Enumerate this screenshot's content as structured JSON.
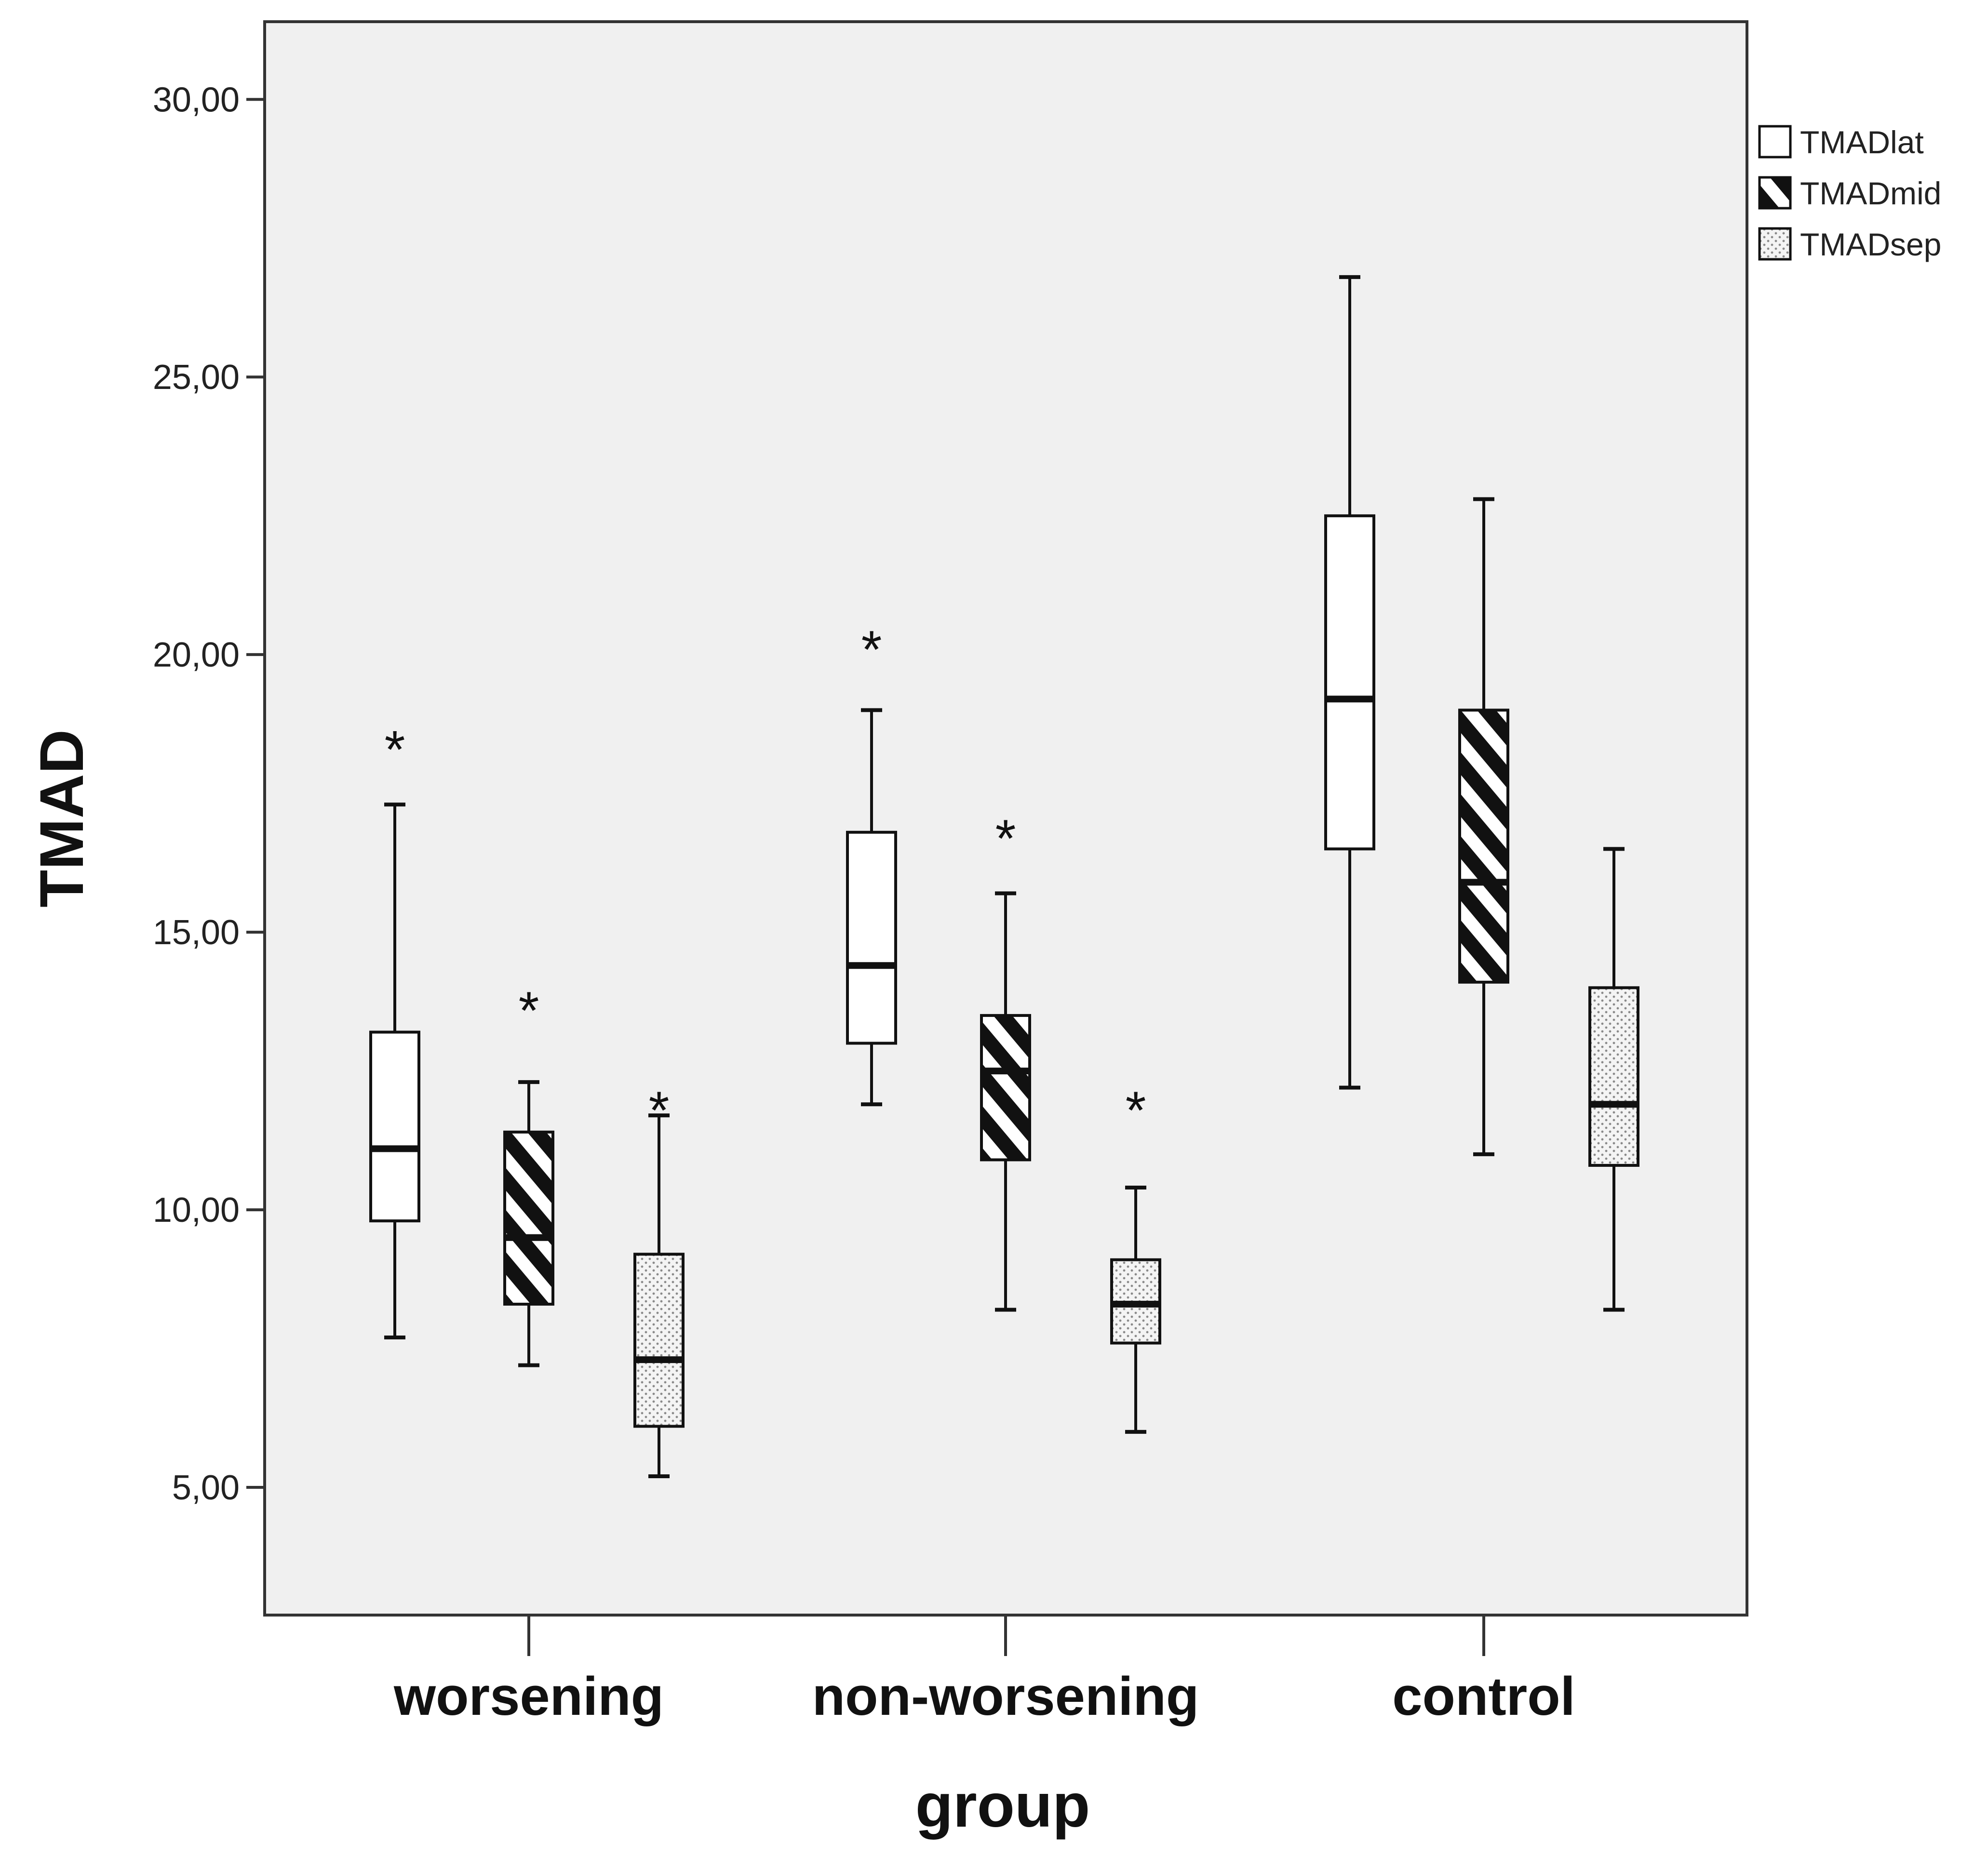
{
  "chart_data": {
    "type": "boxplot",
    "title": "",
    "xlabel": "group",
    "ylabel": "TMAD",
    "ylim": [
      2.7,
      31.4
    ],
    "yticks": [
      "5,00",
      "10,00",
      "15,00",
      "20,00",
      "25,00",
      "30,00"
    ],
    "categories": [
      "worsening",
      "non-worsening",
      "control"
    ],
    "legend_position": "right",
    "grid": false,
    "series": [
      {
        "name": "TMADlat",
        "fill": "#ffffff",
        "pattern": "none",
        "boxes": [
          {
            "min": 7.7,
            "q1": 9.8,
            "median": 11.1,
            "q3": 13.2,
            "max": 17.3,
            "outliers": [
              18.5
            ]
          },
          {
            "min": 11.9,
            "q1": 13.0,
            "median": 14.4,
            "q3": 16.8,
            "max": 19.0,
            "outliers": [
              20.3
            ]
          },
          {
            "min": 12.2,
            "q1": 16.5,
            "median": 19.2,
            "q3": 22.5,
            "max": 26.8,
            "outliers": []
          }
        ]
      },
      {
        "name": "TMADmid",
        "fill": "#111111",
        "pattern": "diagonal-stripes",
        "boxes": [
          {
            "min": 7.2,
            "q1": 8.3,
            "median": 9.5,
            "q3": 11.4,
            "max": 12.3,
            "outliers": [
              13.8
            ]
          },
          {
            "min": 8.2,
            "q1": 10.9,
            "median": 12.5,
            "q3": 13.5,
            "max": 15.7,
            "outliers": [
              16.9
            ]
          },
          {
            "min": 11.0,
            "q1": 14.1,
            "median": 15.9,
            "q3": 19.0,
            "max": 22.8,
            "outliers": []
          }
        ]
      },
      {
        "name": "TMADsep",
        "fill": "#e6e6e6",
        "pattern": "dots",
        "boxes": [
          {
            "min": 5.2,
            "q1": 6.1,
            "median": 7.3,
            "q3": 9.2,
            "max": 11.7,
            "outliers": [
              12.0
            ]
          },
          {
            "min": 6.0,
            "q1": 7.6,
            "median": 8.3,
            "q3": 9.1,
            "max": 10.4,
            "outliers": [
              12.0
            ]
          },
          {
            "min": 8.2,
            "q1": 10.8,
            "median": 11.9,
            "q3": 14.0,
            "max": 16.5,
            "outliers": []
          }
        ]
      }
    ]
  },
  "style": {
    "plot_background": "#f0f0f0",
    "axis_color": "#333333"
  }
}
